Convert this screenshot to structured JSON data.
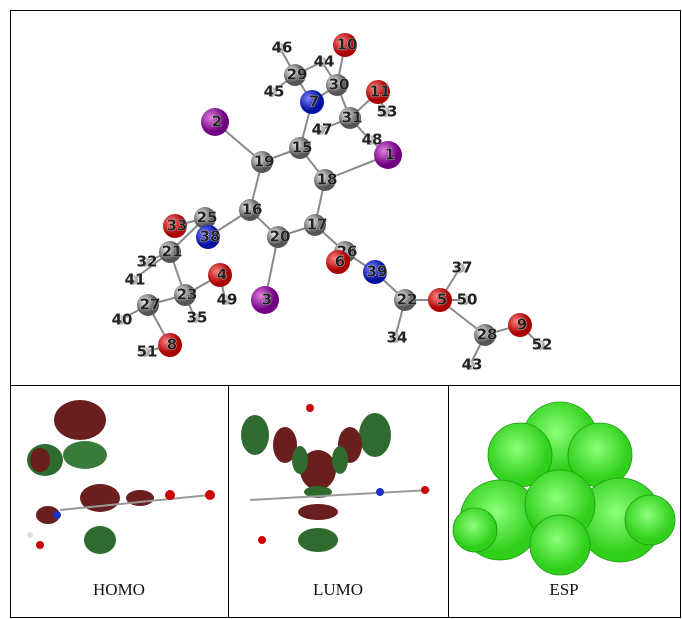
{
  "structure": {
    "atoms": [
      {
        "label": "46"
      },
      {
        "label": "29"
      },
      {
        "label": "44"
      },
      {
        "label": "10"
      },
      {
        "label": "30"
      },
      {
        "label": "45"
      },
      {
        "label": "7"
      },
      {
        "label": "11"
      },
      {
        "label": "31"
      },
      {
        "label": "53"
      },
      {
        "label": "2"
      },
      {
        "label": "47"
      },
      {
        "label": "48"
      },
      {
        "label": "15"
      },
      {
        "label": "1"
      },
      {
        "label": "19"
      },
      {
        "label": "18"
      },
      {
        "label": "16"
      },
      {
        "label": "25"
      },
      {
        "label": "33"
      },
      {
        "label": "38"
      },
      {
        "label": "17"
      },
      {
        "label": "20"
      },
      {
        "label": "21"
      },
      {
        "label": "26"
      },
      {
        "label": "6"
      },
      {
        "label": "39"
      },
      {
        "label": "32"
      },
      {
        "label": "41"
      },
      {
        "label": "4"
      },
      {
        "label": "23"
      },
      {
        "label": "37"
      },
      {
        "label": "22"
      },
      {
        "label": "5"
      },
      {
        "label": "50"
      },
      {
        "label": "3"
      },
      {
        "label": "49"
      },
      {
        "label": "27"
      },
      {
        "label": "35"
      },
      {
        "label": "40"
      },
      {
        "label": "28"
      },
      {
        "label": "9"
      },
      {
        "label": "34"
      },
      {
        "label": "52"
      },
      {
        "label": "8"
      },
      {
        "label": "51"
      },
      {
        "label": "43"
      }
    ]
  },
  "panels": [
    {
      "caption": "HOMO"
    },
    {
      "caption": "LUMO"
    },
    {
      "caption": "ESP"
    }
  ]
}
